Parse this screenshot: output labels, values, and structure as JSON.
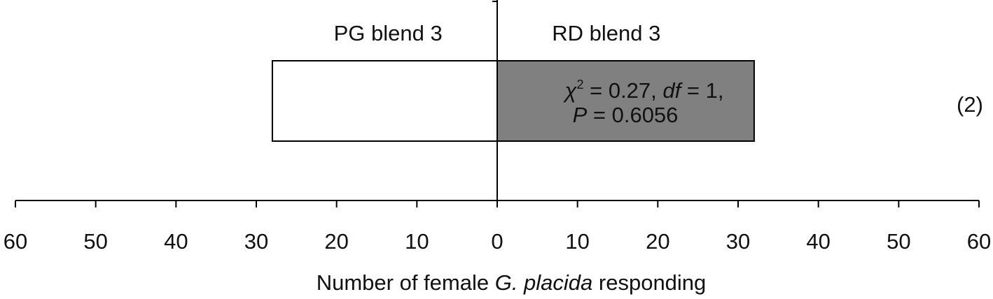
{
  "chart_data": {
    "type": "diverging-bar",
    "categories": [
      "(2)"
    ],
    "series": [
      {
        "name": "PG blend 3",
        "color": "#ffffff",
        "values": [
          -28
        ]
      },
      {
        "name": "RD blend 3",
        "color": "#808080",
        "values": [
          32
        ]
      }
    ],
    "annotation": {
      "line1": [
        "χ",
        "2",
        " = 0.27, ",
        "df",
        " = 1,"
      ],
      "line2": [
        "P",
        " = 0.6056"
      ]
    },
    "xlabel": [
      "Number of female ",
      "G. placida",
      " responding"
    ],
    "xlim": [
      -60,
      60
    ],
    "xticks": [
      {
        "value": -60,
        "label": "60"
      },
      {
        "value": -50,
        "label": "50"
      },
      {
        "value": -40,
        "label": "40"
      },
      {
        "value": -30,
        "label": "30"
      },
      {
        "value": -20,
        "label": "20"
      },
      {
        "value": -10,
        "label": "10"
      },
      0,
      10,
      20,
      30,
      40,
      50,
      60
    ]
  }
}
